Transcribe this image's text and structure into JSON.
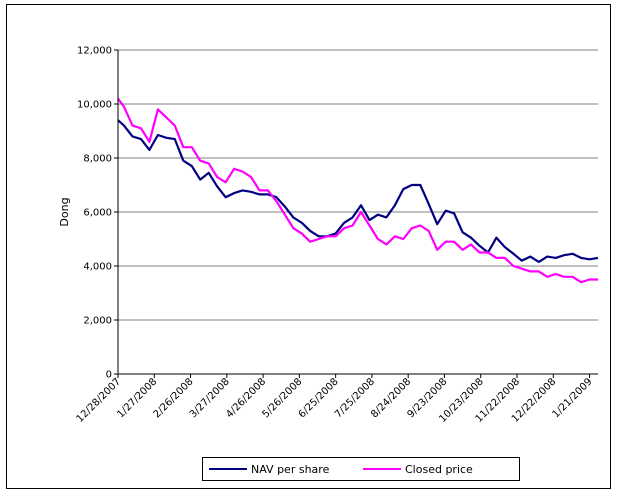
{
  "chart_data": {
    "type": "line",
    "title": "",
    "xlabel": "",
    "ylabel": "Dong",
    "ylim": [
      0,
      12000
    ],
    "y_ticks": [
      "0",
      "2,000",
      "4,000",
      "6,000",
      "8,000",
      "10,000",
      "12,000"
    ],
    "y_tick_values": [
      0,
      2000,
      4000,
      6000,
      8000,
      10000,
      12000
    ],
    "x_tick_labels": [
      "12/28/2007",
      "1/27/2008",
      "2/26/2008",
      "3/27/2008",
      "4/26/2008",
      "5/26/2008",
      "6/25/2008",
      "7/25/2008",
      "8/24/2008",
      "9/23/2008",
      "10/23/2008",
      "11/22/2008",
      "12/22/2008",
      "1/21/2009"
    ],
    "grid": true,
    "legend_position": "bottom",
    "series": [
      {
        "name": "NAV per share",
        "color": "#000080",
        "x": [
          "12/28/2007",
          "1/2/2008",
          "1/9/2008",
          "1/16/2008",
          "1/23/2008",
          "1/30/2008",
          "2/6/2008",
          "2/13/2008",
          "2/20/2008",
          "2/27/2008",
          "3/5/2008",
          "3/12/2008",
          "3/19/2008",
          "3/26/2008",
          "4/2/2008",
          "4/9/2008",
          "4/16/2008",
          "4/23/2008",
          "4/30/2008",
          "5/7/2008",
          "5/14/2008",
          "5/21/2008",
          "5/28/2008",
          "6/4/2008",
          "6/11/2008",
          "6/18/2008",
          "6/25/2008",
          "7/2/2008",
          "7/9/2008",
          "7/16/2008",
          "7/23/2008",
          "7/30/2008",
          "8/6/2008",
          "8/13/2008",
          "8/20/2008",
          "8/27/2008",
          "9/3/2008",
          "9/10/2008",
          "9/17/2008",
          "9/24/2008",
          "10/1/2008",
          "10/8/2008",
          "10/15/2008",
          "10/22/2008",
          "10/29/2008",
          "11/5/2008",
          "11/12/2008",
          "11/19/2008",
          "11/26/2008",
          "12/3/2008",
          "12/10/2008",
          "12/17/2008",
          "12/24/2008",
          "12/31/2008",
          "1/7/2009",
          "1/14/2009",
          "1/21/2009",
          "1/28/2009"
        ],
        "values": [
          9400,
          9200,
          8800,
          8700,
          8300,
          8850,
          8750,
          8700,
          7900,
          7700,
          7200,
          7450,
          6950,
          6550,
          6700,
          6800,
          6750,
          6650,
          6650,
          6550,
          6200,
          5800,
          5600,
          5300,
          5100,
          5100,
          5200,
          5600,
          5800,
          6250,
          5700,
          5900,
          5800,
          6250,
          6850,
          7000,
          7000,
          6300,
          5550,
          6050,
          5950,
          5250,
          5050,
          4750,
          4500,
          5050,
          4700,
          4450,
          4200,
          4350,
          4150,
          4350,
          4300,
          4400,
          4450,
          4300,
          4250,
          4300
        ]
      },
      {
        "name": "Closed price",
        "color": "#ff00ff",
        "x": [
          "12/28/2007",
          "1/2/2008",
          "1/9/2008",
          "1/16/2008",
          "1/23/2008",
          "1/30/2008",
          "2/6/2008",
          "2/13/2008",
          "2/20/2008",
          "2/27/2008",
          "3/5/2008",
          "3/12/2008",
          "3/19/2008",
          "3/26/2008",
          "4/2/2008",
          "4/9/2008",
          "4/16/2008",
          "4/23/2008",
          "4/30/2008",
          "5/7/2008",
          "5/14/2008",
          "5/21/2008",
          "5/28/2008",
          "6/4/2008",
          "6/11/2008",
          "6/18/2008",
          "6/25/2008",
          "7/2/2008",
          "7/9/2008",
          "7/16/2008",
          "7/23/2008",
          "7/30/2008",
          "8/6/2008",
          "8/13/2008",
          "8/20/2008",
          "8/27/2008",
          "9/3/2008",
          "9/10/2008",
          "9/17/2008",
          "9/24/2008",
          "10/1/2008",
          "10/8/2008",
          "10/15/2008",
          "10/22/2008",
          "10/29/2008",
          "11/5/2008",
          "11/12/2008",
          "11/19/2008",
          "11/26/2008",
          "12/3/2008",
          "12/10/2008",
          "12/17/2008",
          "12/24/2008",
          "12/31/2008",
          "1/7/2009",
          "1/14/2009",
          "1/21/2009",
          "1/28/2009"
        ],
        "values": [
          10200,
          9900,
          9200,
          9100,
          8600,
          9800,
          9500,
          9200,
          8400,
          8400,
          7900,
          7800,
          7300,
          7100,
          7600,
          7500,
          7300,
          6800,
          6800,
          6400,
          5900,
          5400,
          5200,
          4900,
          5000,
          5100,
          5100,
          5400,
          5500,
          6000,
          5500,
          5000,
          4800,
          5100,
          5000,
          5400,
          5500,
          5300,
          4600,
          4900,
          4900,
          4600,
          4800,
          4500,
          4500,
          4300,
          4300,
          4000,
          3900,
          3800,
          3800,
          3600,
          3700,
          3600,
          3600,
          3400,
          3500,
          3500
        ]
      }
    ]
  }
}
